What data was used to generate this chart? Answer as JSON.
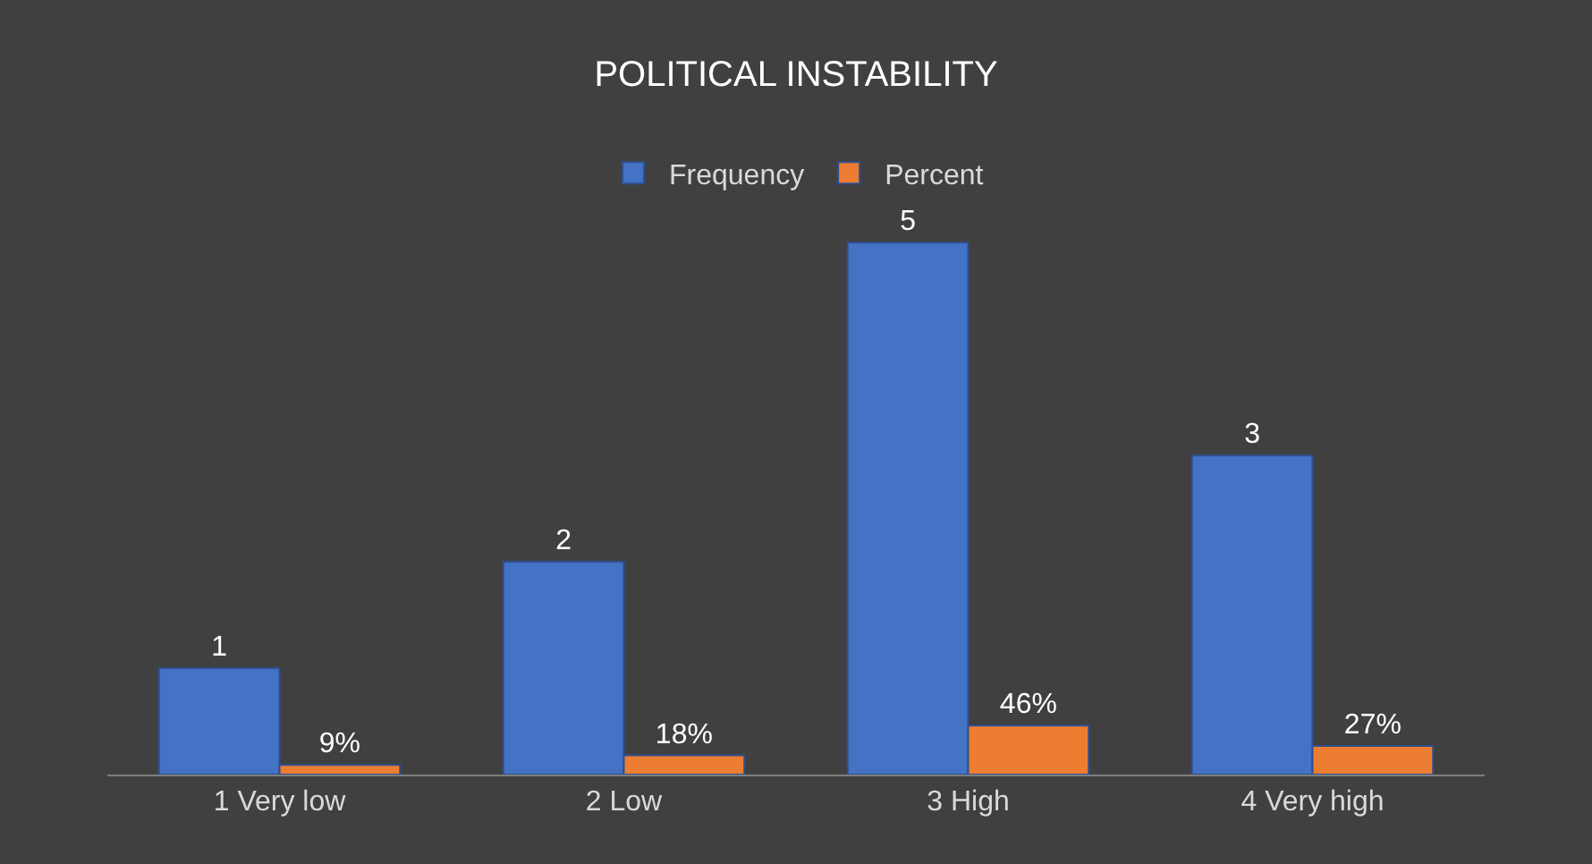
{
  "chart_data": {
    "type": "bar",
    "title": "POLITICAL INSTABILITY",
    "categories": [
      "1 Very low",
      "2 Low",
      "3 High",
      "4 Very high"
    ],
    "series": [
      {
        "name": "Frequency",
        "color": "#4472c4",
        "values": [
          1,
          2,
          5,
          3
        ],
        "value_labels": [
          "1",
          "2",
          "5",
          "3"
        ]
      },
      {
        "name": "Percent",
        "color": "#ed7d31",
        "values": [
          0.09,
          0.18,
          0.46,
          0.27
        ],
        "value_labels": [
          "9%",
          "18%",
          "46%",
          "27%"
        ]
      }
    ],
    "legend": "top"
  }
}
